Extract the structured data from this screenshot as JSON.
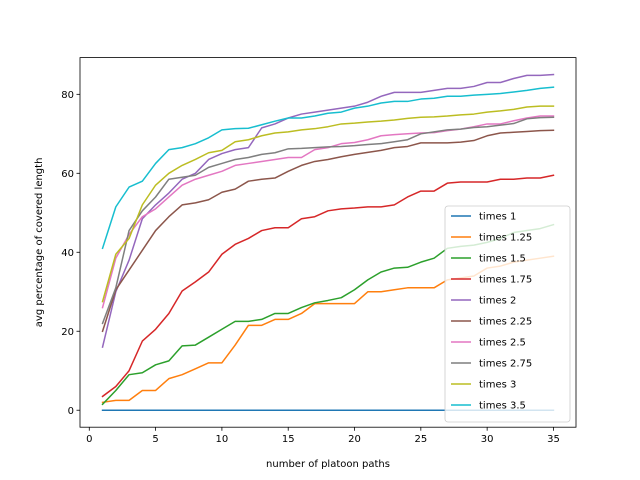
{
  "chart_data": {
    "type": "line",
    "title": "",
    "xlabel": "number of platoon paths",
    "ylabel": "avg percentage of covered length",
    "xlim": [
      -0.7,
      36.7
    ],
    "ylim": [
      -4.3,
      89.3
    ],
    "xticks": [
      0,
      5,
      10,
      15,
      20,
      25,
      30,
      35
    ],
    "yticks": [
      0,
      20,
      40,
      60,
      80
    ],
    "grid": false,
    "legend_position": "lower right",
    "x": [
      1,
      2,
      3,
      4,
      5,
      6,
      7,
      8,
      9,
      10,
      11,
      12,
      13,
      14,
      15,
      16,
      17,
      18,
      19,
      20,
      21,
      22,
      23,
      24,
      25,
      26,
      27,
      28,
      29,
      30,
      31,
      32,
      33,
      34,
      35
    ],
    "series": [
      {
        "name": "times 1",
        "color": "#1f77b4",
        "values": [
          0,
          0,
          0,
          0,
          0,
          0,
          0,
          0,
          0,
          0,
          0,
          0,
          0,
          0,
          0,
          0,
          0,
          0,
          0,
          0,
          0,
          0,
          0,
          0,
          0,
          0,
          0,
          0,
          0,
          0,
          0,
          0,
          0,
          0,
          0
        ]
      },
      {
        "name": "times 1.25",
        "color": "#ff7f0e",
        "values": [
          2,
          2.5,
          2.5,
          5,
          5,
          8,
          9,
          10.5,
          12,
          12,
          16.5,
          21.5,
          21.5,
          23,
          23,
          24.5,
          27,
          27,
          27,
          27,
          30,
          30,
          30.5,
          31,
          31,
          31,
          33,
          33.5,
          34,
          36,
          36.5,
          37.5,
          38,
          38.5,
          39
        ]
      },
      {
        "name": "times 1.5",
        "color": "#2ca02c",
        "values": [
          1.5,
          5,
          9,
          9.5,
          11.5,
          12.5,
          16.3,
          16.5,
          18.5,
          20.5,
          22.5,
          22.5,
          23,
          24.5,
          24.5,
          26,
          27.2,
          27.8,
          28.5,
          30.5,
          33,
          35,
          36,
          36.2,
          37.5,
          38.5,
          41,
          41.5,
          41.8,
          42.5,
          43.5,
          45,
          45.5,
          46,
          47
        ]
      },
      {
        "name": "times 1.75",
        "color": "#d62728",
        "values": [
          3.5,
          6,
          10,
          17.5,
          20.5,
          24.5,
          30.2,
          32.5,
          35,
          39.5,
          42,
          43.5,
          45.5,
          46.2,
          46.2,
          48.5,
          49,
          50.5,
          51,
          51.2,
          51.5,
          51.5,
          52,
          54,
          55.5,
          55.5,
          57.5,
          57.8,
          57.8,
          57.8,
          58.5,
          58.5,
          58.8,
          58.8,
          59.5
        ]
      },
      {
        "name": "times 2",
        "color": "#9467bd",
        "values": [
          16,
          30,
          38,
          48.5,
          52,
          55,
          58.5,
          60,
          63.5,
          65,
          66,
          66.5,
          71.5,
          72.5,
          74,
          75,
          75.5,
          76,
          76.5,
          77,
          78,
          79.5,
          80.5,
          80.5,
          80.5,
          81,
          81.5,
          81.5,
          82,
          83,
          83,
          84,
          84.8,
          84.8,
          85
        ]
      },
      {
        "name": "times 2.25",
        "color": "#8c564b",
        "values": [
          20,
          30.5,
          35.5,
          40.5,
          45.5,
          49,
          52,
          52.5,
          53.3,
          55.2,
          56,
          58,
          58.5,
          58.8,
          60.5,
          62,
          63,
          63.5,
          64.2,
          64.8,
          65.3,
          65.8,
          66.5,
          66.8,
          67.7,
          67.7,
          67.7,
          67.9,
          68.3,
          69.5,
          70.2,
          70.4,
          70.6,
          70.8,
          70.9
        ]
      },
      {
        "name": "times 2.5",
        "color": "#e377c2",
        "values": [
          26,
          38.5,
          44.5,
          49,
          51,
          54,
          57,
          58.5,
          59.5,
          60.5,
          62,
          62.5,
          63,
          63.5,
          64,
          64,
          66,
          66.5,
          67.5,
          67.8,
          68.5,
          69.5,
          69.8,
          70,
          70.2,
          70.3,
          70.8,
          71.2,
          71.8,
          72.5,
          72.5,
          73.3,
          74,
          74.5,
          74.5
        ]
      },
      {
        "name": "times 2.75",
        "color": "#7f7f7f",
        "values": [
          22,
          31,
          45.5,
          50.5,
          54,
          58.5,
          59,
          59.5,
          61.5,
          62.5,
          63.5,
          64,
          64.8,
          65.2,
          66.2,
          66.3,
          66.5,
          66.7,
          66.8,
          67,
          67.3,
          67.5,
          68,
          68.5,
          70,
          70.5,
          71,
          71.2,
          71.6,
          71.8,
          72.2,
          72.6,
          73.8,
          74.1,
          74.2
        ]
      },
      {
        "name": "times 3",
        "color": "#bcbd22",
        "values": [
          27.5,
          39.5,
          43.5,
          52,
          57,
          60,
          62,
          63.5,
          65.2,
          65.8,
          68,
          68.5,
          69.5,
          70.2,
          70.5,
          71,
          71.3,
          71.8,
          72.5,
          72.7,
          73,
          73.2,
          73.5,
          73.9,
          74.2,
          74.3,
          74.5,
          74.8,
          75,
          75.5,
          75.8,
          76.2,
          76.8,
          77,
          77
        ]
      },
      {
        "name": "times 3.5",
        "color": "#17becf",
        "values": [
          41,
          51.5,
          56.5,
          58,
          62.5,
          66,
          66.5,
          67.5,
          69,
          71,
          71.3,
          71.4,
          72.3,
          73.2,
          74,
          74,
          74.5,
          75.2,
          75.5,
          76.5,
          77,
          77.8,
          78.2,
          78.2,
          78.8,
          79,
          79.5,
          79.5,
          79.8,
          80,
          80.2,
          80.6,
          81,
          81.5,
          81.8
        ]
      }
    ]
  }
}
